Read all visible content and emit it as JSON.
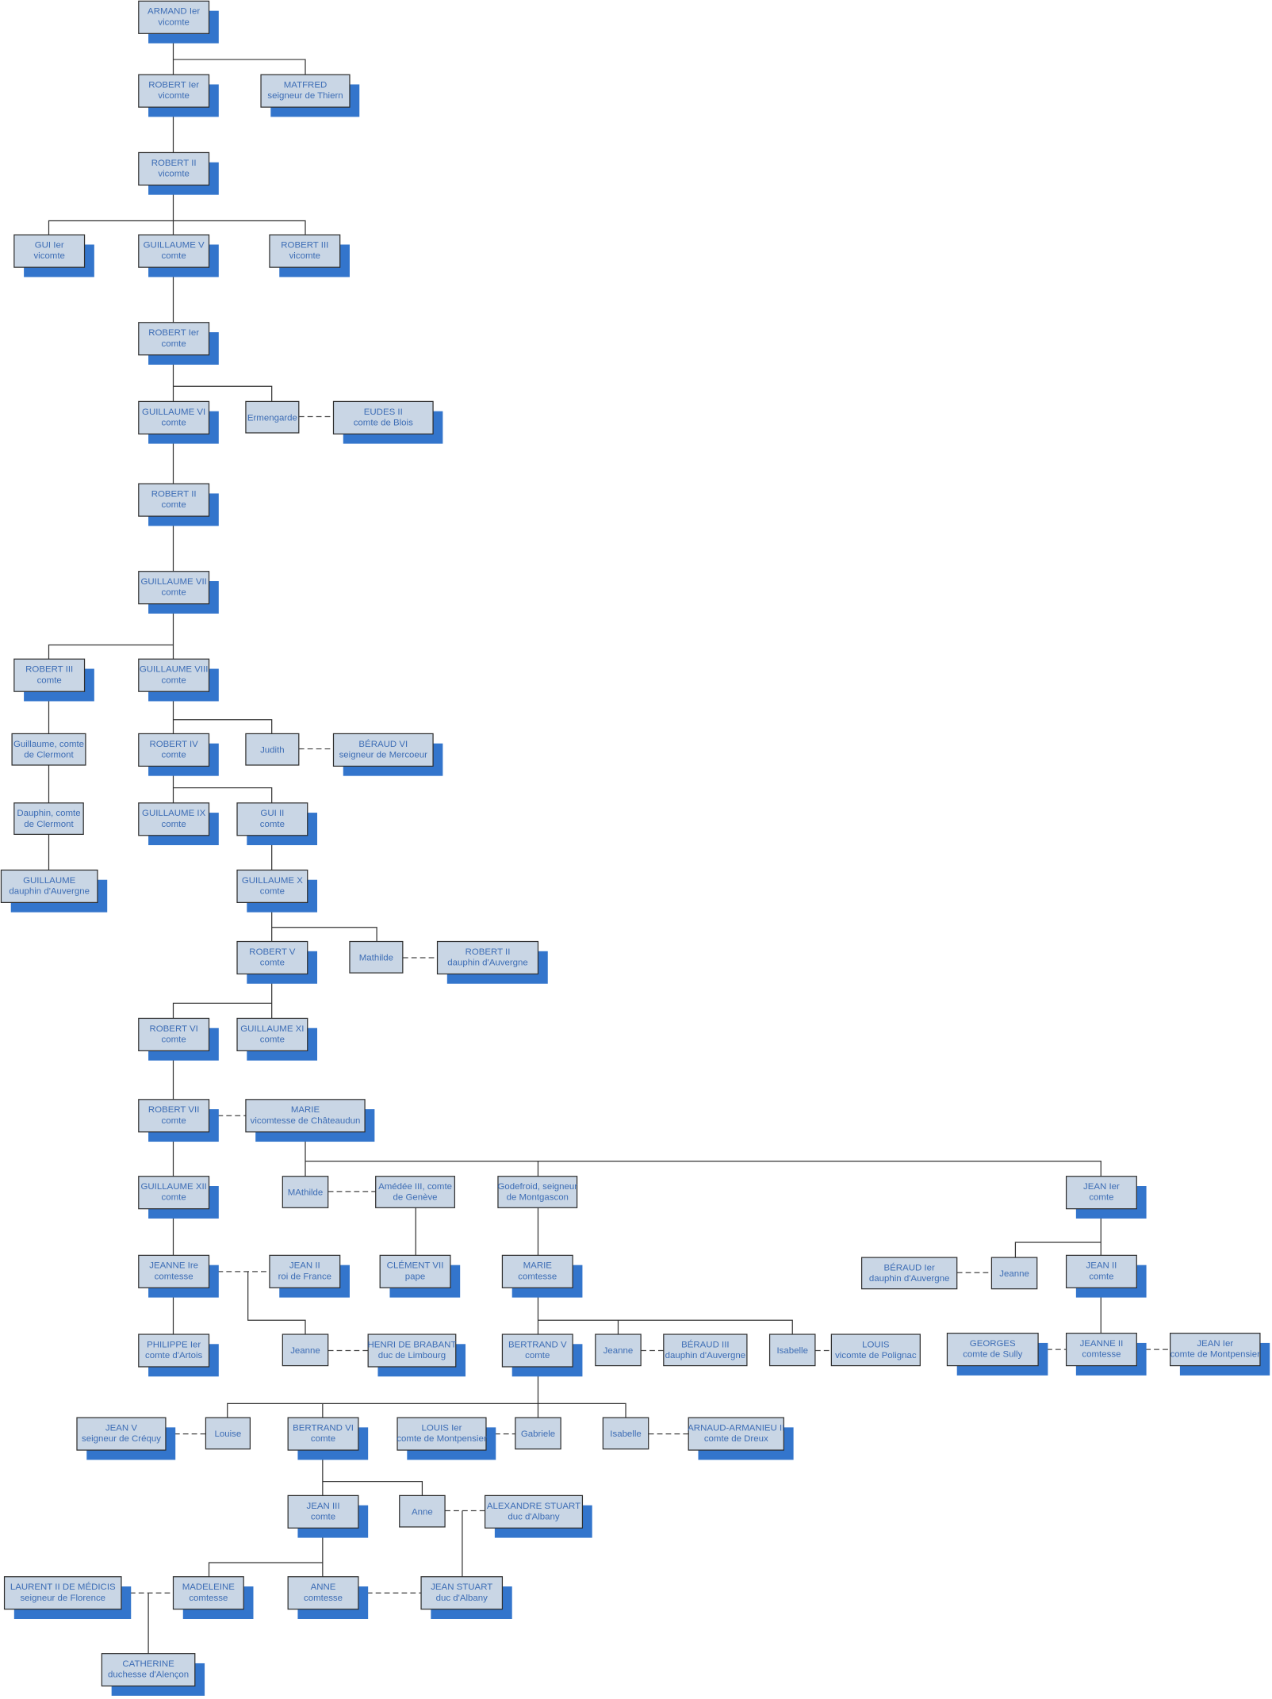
{
  "colors": {
    "box_fill": "#c9d6e5",
    "box_border": "#2e2e2e",
    "text": "#3d6db5",
    "shadow": "#3375cc"
  },
  "nodes": [
    {
      "id": "armand",
      "name": "ARMAND Ier",
      "title": "vicomte"
    },
    {
      "id": "robert1v",
      "name": "ROBERT Ier",
      "title": "vicomte"
    },
    {
      "id": "matfred",
      "name": "MATFRED",
      "title": "seigneur de Thiern"
    },
    {
      "id": "robert2v",
      "name": "ROBERT II",
      "title": "vicomte"
    },
    {
      "id": "gui1",
      "name": "GUI Ier",
      "title": "vicomte"
    },
    {
      "id": "guil5",
      "name": "GUILLAUME V",
      "title": "comte"
    },
    {
      "id": "robert3v",
      "name": "ROBERT III",
      "title": "vicomte"
    },
    {
      "id": "robert1c",
      "name": "ROBERT Ier",
      "title": "comte"
    },
    {
      "id": "guil6",
      "name": "GUILLAUME VI",
      "title": "comte"
    },
    {
      "id": "ermengarde",
      "name": "Ermengarde",
      "title": ""
    },
    {
      "id": "eudes",
      "name": "EUDES II",
      "title": "comte de Blois"
    },
    {
      "id": "robert2c",
      "name": "ROBERT II",
      "title": "comte"
    },
    {
      "id": "guil7",
      "name": "GUILLAUME VII",
      "title": "comte"
    },
    {
      "id": "robert3c",
      "name": "ROBERT III",
      "title": "comte"
    },
    {
      "id": "guil8",
      "name": "GUILLAUME VIII",
      "title": "comte"
    },
    {
      "id": "guilclermont",
      "name": "Guillaume, comte",
      "title": "de Clermont"
    },
    {
      "id": "robert4",
      "name": "ROBERT IV",
      "title": "comte"
    },
    {
      "id": "judith",
      "name": "Judith",
      "title": ""
    },
    {
      "id": "beraud6",
      "name": "BÉRAUD VI",
      "title": "seigneur de Mercoeur"
    },
    {
      "id": "dauphin",
      "name": "Dauphin, comte",
      "title": "de Clermont"
    },
    {
      "id": "guil9",
      "name": "GUILLAUME IX",
      "title": "comte"
    },
    {
      "id": "gui2",
      "name": "GUI II",
      "title": "comte"
    },
    {
      "id": "guildauphin",
      "name": "GUILLAUME",
      "title": "dauphin d'Auvergne"
    },
    {
      "id": "guil10",
      "name": "GUILLAUME X",
      "title": "comte"
    },
    {
      "id": "robert5",
      "name": "ROBERT V",
      "title": "comte"
    },
    {
      "id": "mathilde",
      "name": "Mathilde",
      "title": ""
    },
    {
      "id": "robert2d",
      "name": "ROBERT II",
      "title": "dauphin d'Auvergne"
    },
    {
      "id": "robert6",
      "name": "ROBERT VI",
      "title": "comte"
    },
    {
      "id": "guil11",
      "name": "GUILLAUME XI",
      "title": "comte"
    },
    {
      "id": "robert7",
      "name": "ROBERT VII",
      "title": "comte"
    },
    {
      "id": "marie",
      "name": "MARIE",
      "title": "vicomtesse de Châteaudun"
    },
    {
      "id": "guil12",
      "name": "GUILLAUME XII",
      "title": "comte"
    },
    {
      "id": "mathilde2",
      "name": "MAthilde",
      "title": ""
    },
    {
      "id": "amedee",
      "name": "Amédée III, comte",
      "title": "de Genève"
    },
    {
      "id": "godefroid",
      "name": "Godefroid, seigneur",
      "title": "de Montgascon"
    },
    {
      "id": "jean1",
      "name": "JEAN Ier",
      "title": "comte"
    },
    {
      "id": "jeanne1re",
      "name": "JEANNE Ire",
      "title": "comtesse"
    },
    {
      "id": "jean2roi",
      "name": "JEAN II",
      "title": "roi de France"
    },
    {
      "id": "clement",
      "name": "CLÉMENT VII",
      "title": "pape"
    },
    {
      "id": "mariec",
      "name": "MARIE",
      "title": "comtesse"
    },
    {
      "id": "beraud1",
      "name": "BÉRAUD Ier",
      "title": "dauphin d'Auvergne"
    },
    {
      "id": "jeanner",
      "name": "Jeanne",
      "title": ""
    },
    {
      "id": "jean2c",
      "name": "JEAN II",
      "title": "comte"
    },
    {
      "id": "philippe",
      "name": "PHILIPPE Ier",
      "title": "comte d'Artois"
    },
    {
      "id": "jeannel",
      "name": "Jeanne",
      "title": ""
    },
    {
      "id": "henri",
      "name": "HENRI DE BRABANT",
      "title": "duc de Limbourg"
    },
    {
      "id": "bertrand5",
      "name": "BERTRAND V",
      "title": "comte"
    },
    {
      "id": "jeanneb",
      "name": "Jeanne",
      "title": ""
    },
    {
      "id": "beraud3",
      "name": "BÉRAUD III",
      "title": "dauphin d'Auvergne"
    },
    {
      "id": "isabelle1",
      "name": "Isabelle",
      "title": ""
    },
    {
      "id": "louisp",
      "name": "LOUIS",
      "title": "vicomte de Polignac"
    },
    {
      "id": "georges",
      "name": "GEORGES",
      "title": "comte de Sully"
    },
    {
      "id": "jeanne2",
      "name": "JEANNE II",
      "title": "comtesse"
    },
    {
      "id": "jean1mont",
      "name": "JEAN Ier",
      "title": "comte de Montpensier"
    },
    {
      "id": "jean5",
      "name": "JEAN V",
      "title": "seigneur de Créquy"
    },
    {
      "id": "louise",
      "name": "Louise",
      "title": ""
    },
    {
      "id": "bertrand6",
      "name": "BERTRAND VI",
      "title": "comte"
    },
    {
      "id": "louis1mont",
      "name": "LOUIS Ier",
      "title": "comte de Montpensier"
    },
    {
      "id": "gabriele",
      "name": "Gabriele",
      "title": ""
    },
    {
      "id": "isabelle2",
      "name": "Isabelle",
      "title": ""
    },
    {
      "id": "arnaud",
      "name": "ARNAUD-ARMANIEU II",
      "title": "comte de Dreux"
    },
    {
      "id": "jean3",
      "name": "JEAN III",
      "title": "comte"
    },
    {
      "id": "anne",
      "name": "Anne",
      "title": ""
    },
    {
      "id": "alexandre",
      "name": "ALEXANDRE STUART",
      "title": "duc d'Albany"
    },
    {
      "id": "laurent",
      "name": "LAURENT II DE MÉDICIS",
      "title": "seigneur de Florence"
    },
    {
      "id": "madeleine",
      "name": "MADELEINE",
      "title": "comtesse"
    },
    {
      "id": "annec",
      "name": "ANNE",
      "title": "comtesse"
    },
    {
      "id": "jeanstuart",
      "name": "JEAN STUART",
      "title": "duc d'Albany"
    },
    {
      "id": "catherine",
      "name": "CATHERINE",
      "title": "duchesse d'Alençon"
    }
  ]
}
